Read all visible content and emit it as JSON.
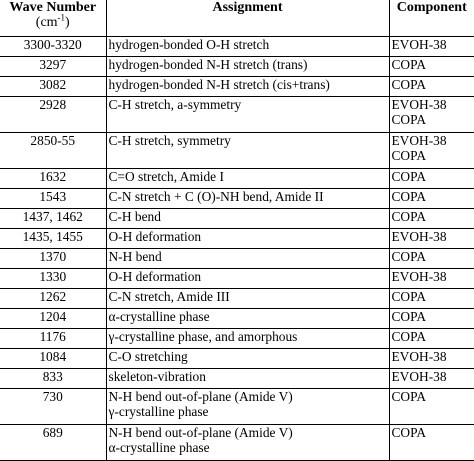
{
  "header": {
    "wave_number_label": "Wave Number",
    "unit_prefix": "(cm",
    "unit_exp": "-1",
    "unit_suffix": ")",
    "assignment": "Assignment",
    "component": "Component"
  },
  "rows": [
    {
      "wave": "3300-3320",
      "assignment": [
        "hydrogen-bonded O-H stretch"
      ],
      "component": [
        "EVOH-38"
      ]
    },
    {
      "wave": "3297",
      "assignment": [
        "hydrogen-bonded N-H stretch (trans)"
      ],
      "component": [
        "COPA"
      ]
    },
    {
      "wave": "3082",
      "assignment": [
        "hydrogen-bonded N-H stretch (cis+trans)"
      ],
      "component": [
        "COPA"
      ]
    },
    {
      "wave": "2928",
      "assignment": [
        "C-H stretch, a-symmetry"
      ],
      "component": [
        "EVOH-38",
        "COPA"
      ]
    },
    {
      "wave": "2850-55",
      "assignment": [
        "C-H stretch, symmetry"
      ],
      "component": [
        "EVOH-38",
        "COPA"
      ]
    },
    {
      "wave": "1632",
      "assignment": [
        "C=O stretch,  Amide I"
      ],
      "component": [
        "COPA"
      ]
    },
    {
      "wave": "1543",
      "assignment": [
        "C-N stretch + C (O)-NH bend,  Amide II"
      ],
      "component": [
        "COPA"
      ]
    },
    {
      "wave": "1437, 1462",
      "assignment": [
        "C-H    bend"
      ],
      "component": [
        "COPA"
      ]
    },
    {
      "wave": "1435, 1455",
      "assignment": [
        "O-H   deformation"
      ],
      "component": [
        "EVOH-38"
      ]
    },
    {
      "wave": "1370",
      "assignment": [
        "N-H bend"
      ],
      "component": [
        "COPA"
      ]
    },
    {
      "wave": "1330",
      "assignment": [
        "O-H   deformation"
      ],
      "component": [
        "EVOH-38"
      ]
    },
    {
      "wave": "1262",
      "assignment": [
        "C-N stretch,  Amide III"
      ],
      "component": [
        "COPA"
      ]
    },
    {
      "wave": "1204",
      "assignment": [
        "α-crystalline phase"
      ],
      "component": [
        "COPA"
      ]
    },
    {
      "wave": "1176",
      "assignment": [
        "γ-crystalline phase, and amorphous"
      ],
      "component": [
        "COPA"
      ]
    },
    {
      "wave": "1084",
      "assignment": [
        "C-O     stretching"
      ],
      "component": [
        "EVOH-38"
      ]
    },
    {
      "wave": "833",
      "assignment": [
        "skeleton-vibration"
      ],
      "component": [
        "EVOH-38"
      ]
    },
    {
      "wave": "730",
      "assignment": [
        "N-H bend out-of-plane (Amide V)",
        "γ-crystalline phase"
      ],
      "component": [
        "COPA"
      ]
    },
    {
      "wave": "689",
      "assignment": [
        "N-H bend out-of-plane (Amide V)",
        "α-crystalline phase"
      ],
      "component": [
        "COPA"
      ]
    }
  ]
}
